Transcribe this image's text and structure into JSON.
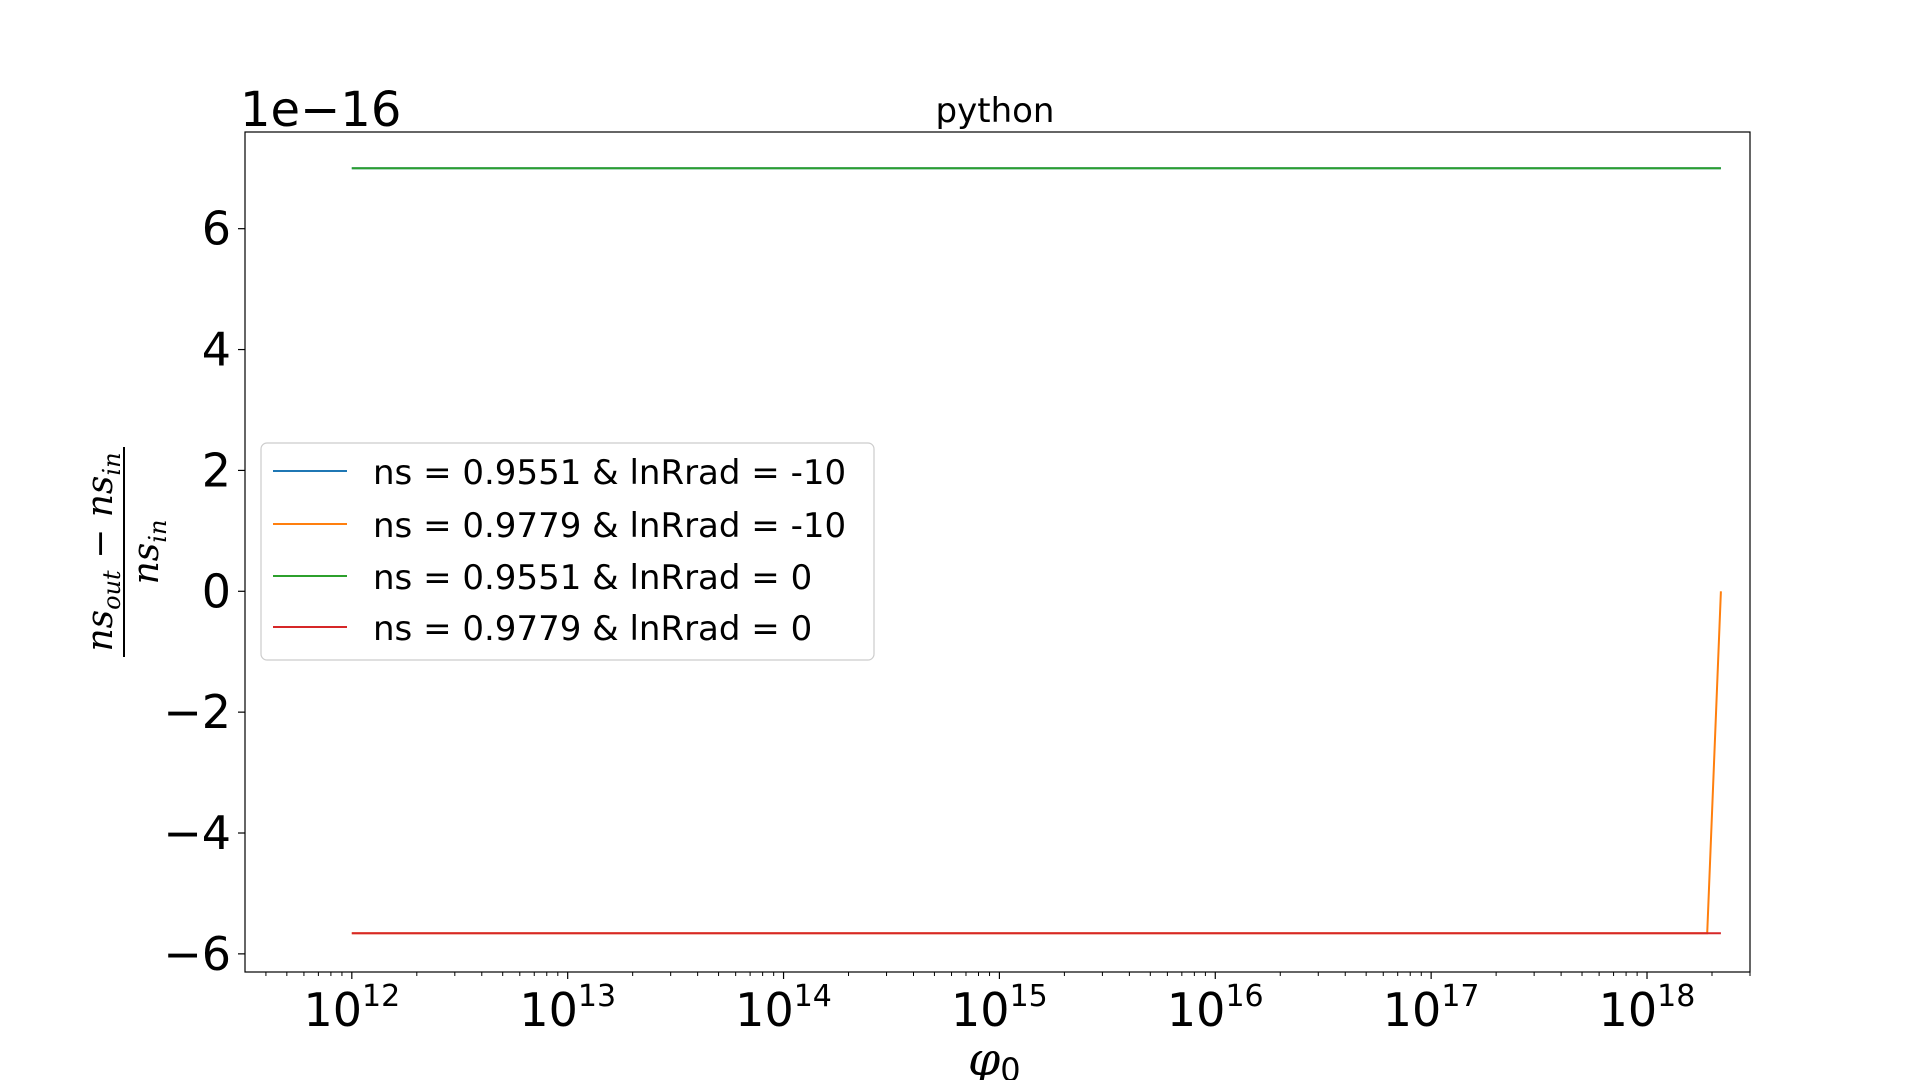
{
  "chart_data": {
    "type": "line",
    "title": "python",
    "offset_text": "1e−16",
    "xlabel": "φ0",
    "ylabel": "(ns_out − ns_in) / ns_in",
    "x_scale": "log",
    "xlim": [
      320000000000.0,
      3e+18
    ],
    "ylim": [
      -6.3,
      7.6
    ],
    "x_ticks": [
      1000000000000.0,
      10000000000000.0,
      100000000000000.0,
      1000000000000000.0,
      1e+16,
      1e+17,
      1e+18
    ],
    "x_tick_labels": [
      {
        "base": "10",
        "exp": "12"
      },
      {
        "base": "10",
        "exp": "13"
      },
      {
        "base": "10",
        "exp": "14"
      },
      {
        "base": "10",
        "exp": "15"
      },
      {
        "base": "10",
        "exp": "16"
      },
      {
        "base": "10",
        "exp": "17"
      },
      {
        "base": "10",
        "exp": "18"
      }
    ],
    "y_ticks": [
      -6,
      -4,
      -2,
      0,
      2,
      4,
      6
    ],
    "y_tick_labels": [
      "−6",
      "−4",
      "−2",
      "0",
      "2",
      "4",
      "6"
    ],
    "grid": false,
    "legend_position": "center-left",
    "series": [
      {
        "name": "ns = 0.9551 & lnRrad = -10",
        "color": "#1f77b4",
        "x": [
          1000000000000.0,
          2.2e+18
        ],
        "y": [
          7.0,
          7.0
        ]
      },
      {
        "name": "ns = 0.9779 & lnRrad = -10",
        "color": "#ff7f0e",
        "x": [
          1000000000000.0,
          1.9e+18,
          2.2e+18
        ],
        "y": [
          -5.66,
          -5.66,
          0.0
        ]
      },
      {
        "name": "ns = 0.9551 & lnRrad = 0",
        "color": "#2ca02c",
        "x": [
          1000000000000.0,
          2.2e+18
        ],
        "y": [
          7.0,
          7.0
        ]
      },
      {
        "name": "ns = 0.9779 & lnRrad = 0",
        "color": "#d62728",
        "x": [
          1000000000000.0,
          2.2e+18
        ],
        "y": [
          -5.66,
          -5.66
        ]
      }
    ]
  }
}
